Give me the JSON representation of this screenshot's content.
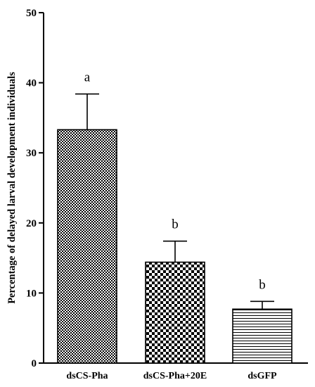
{
  "chart_data": {
    "type": "bar",
    "categories": [
      "dsCS-Pha",
      "dsCS-Pha+20E",
      "dsGFP"
    ],
    "values": [
      33.3,
      14.4,
      7.7
    ],
    "errors": [
      5.1,
      3.0,
      1.1
    ],
    "significance": [
      "a",
      "b",
      "b"
    ],
    "patterns": [
      "fine-checker",
      "coarse-checker",
      "horizontal-lines"
    ],
    "title": "",
    "xlabel": "",
    "ylabel": "Percentage of delayed larval development individuals",
    "ylim": [
      0,
      50
    ],
    "yticks": [
      0,
      10,
      20,
      30,
      40,
      50
    ],
    "grid": false,
    "legend": "none",
    "colors": {
      "bar_stroke": "#000000",
      "fill": "#000000",
      "background": "#ffffff"
    }
  }
}
